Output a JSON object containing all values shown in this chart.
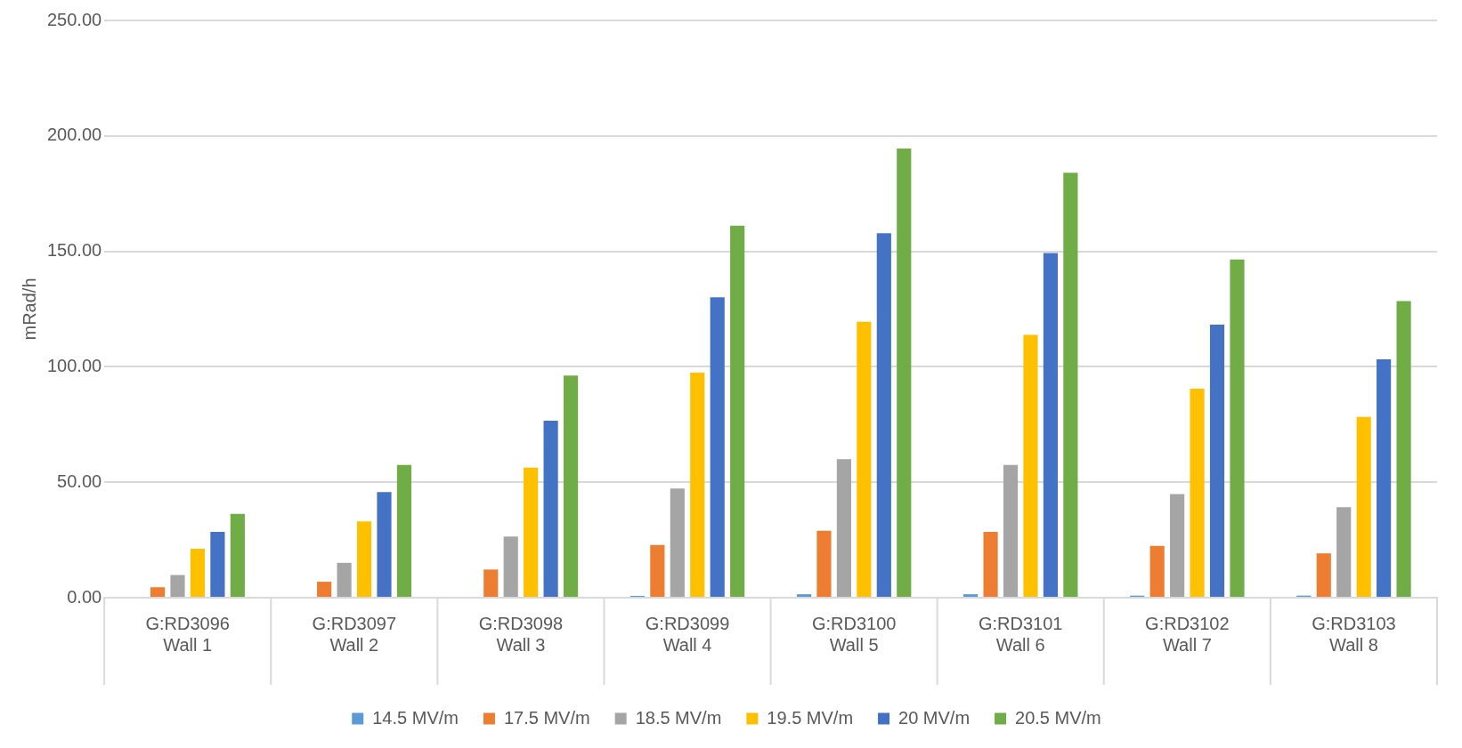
{
  "chart_data": {
    "type": "bar",
    "ylabel": "mRad/h",
    "categories": [
      "G:RD3096\nWall 1",
      "G:RD3097\nWall 2",
      "G:RD3098\nWall 3",
      "G:RD3099\nWall 4",
      "G:RD3100\nWall 5",
      "G:RD3101\nWall 6",
      "G:RD3102\nWall 7",
      "G:RD3103\nWall 8"
    ],
    "series": [
      {
        "name": "14.5 MV/m",
        "color": "#5b9bd5",
        "values": [
          0,
          0,
          0,
          0.8,
          1.5,
          1.5,
          0.9,
          0.9
        ]
      },
      {
        "name": "17.5 MV/m",
        "color": "#ed7d31",
        "values": [
          4.5,
          6.9,
          12.2,
          22.8,
          29,
          28.5,
          22.4,
          19.2
        ]
      },
      {
        "name": "18.5 MV/m",
        "color": "#a5a5a5",
        "values": [
          9.8,
          15.1,
          26.5,
          47.3,
          60,
          57.5,
          44.9,
          39.2
        ]
      },
      {
        "name": "19.5 MV/m",
        "color": "#ffc000",
        "values": [
          21.2,
          33,
          56.3,
          97.5,
          119.5,
          113.8,
          90.5,
          78.3
        ]
      },
      {
        "name": "20 MV/m",
        "color": "#4472c4",
        "values": [
          28.5,
          45.7,
          76.7,
          130.1,
          157.8,
          149.3,
          118.3,
          103.2
        ]
      },
      {
        "name": "20.5 MV/m",
        "color": "#70ad47",
        "values": [
          36.3,
          57.5,
          96.2,
          161.1,
          194.5,
          184,
          146.5,
          128.5
        ]
      }
    ],
    "ylim": [
      0,
      250
    ],
    "yticks": [
      {
        "value": 0,
        "label": "0.00"
      },
      {
        "value": 50,
        "label": "50.00"
      },
      {
        "value": 100,
        "label": "100.00"
      },
      {
        "value": 150,
        "label": "150.00"
      },
      {
        "value": 200,
        "label": "200.00"
      },
      {
        "value": 250,
        "label": "250.00"
      }
    ],
    "grid": "y",
    "legend": "bottom"
  }
}
